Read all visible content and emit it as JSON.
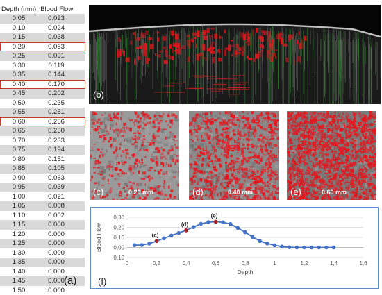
{
  "table": {
    "header_depth": "Depth (mm)",
    "header_flow": "Blood Flow",
    "label": "(a)",
    "rows": [
      {
        "depth": "0.05",
        "flow": "0.023"
      },
      {
        "depth": "0.10",
        "flow": "0.024"
      },
      {
        "depth": "0.15",
        "flow": "0.038"
      },
      {
        "depth": "0.20",
        "flow": "0.063",
        "highlight": true
      },
      {
        "depth": "0.25",
        "flow": "0.091"
      },
      {
        "depth": "0.30",
        "flow": "0.119"
      },
      {
        "depth": "0.35",
        "flow": "0.144"
      },
      {
        "depth": "0.40",
        "flow": "0.170",
        "highlight": true
      },
      {
        "depth": "0.45",
        "flow": "0.202"
      },
      {
        "depth": "0.50",
        "flow": "0.235"
      },
      {
        "depth": "0.55",
        "flow": "0.251"
      },
      {
        "depth": "0.60",
        "flow": "0.256",
        "highlight": true
      },
      {
        "depth": "0.65",
        "flow": "0.250"
      },
      {
        "depth": "0.70",
        "flow": "0.233"
      },
      {
        "depth": "0.75",
        "flow": "0.194"
      },
      {
        "depth": "0.80",
        "flow": "0.151"
      },
      {
        "depth": "0.85",
        "flow": "0.105"
      },
      {
        "depth": "0.90",
        "flow": "0.063"
      },
      {
        "depth": "0.95",
        "flow": "0.039"
      },
      {
        "depth": "1.00",
        "flow": "0.021"
      },
      {
        "depth": "1.05",
        "flow": "0.008"
      },
      {
        "depth": "1.10",
        "flow": "0.002"
      },
      {
        "depth": "1.15",
        "flow": "0.000"
      },
      {
        "depth": "1.20",
        "flow": "0.000"
      },
      {
        "depth": "1.25",
        "flow": "0.000"
      },
      {
        "depth": "1.30",
        "flow": "0.000"
      },
      {
        "depth": "1.35",
        "flow": "0.000"
      },
      {
        "depth": "1.40",
        "flow": "0.000"
      },
      {
        "depth": "1.45",
        "flow": "0.000"
      },
      {
        "depth": "1.50",
        "flow": "0.000"
      }
    ]
  },
  "panels": {
    "b": {
      "label": "(b)"
    },
    "c": {
      "label": "(c)",
      "caption": "0.20 mm"
    },
    "d": {
      "label": "(d)",
      "caption": "0.40 mm"
    },
    "e": {
      "label": "(e)",
      "caption": "0.60 mm"
    },
    "f": {
      "label": "(f)"
    }
  },
  "colors": {
    "line": "#4472c4",
    "marker": "#4472c4",
    "highlight_marker": "#a0202a",
    "table_highlight": "#c0392b",
    "frame": "#5b8dc9",
    "flow_red": "#e8141c"
  },
  "chart_data": {
    "type": "line",
    "xlabel": "Depth",
    "ylabel": "Blood Flow",
    "xlim": [
      0,
      1.6
    ],
    "ylim": [
      -0.1,
      0.3
    ],
    "x_ticks": [
      "0",
      "0,2",
      "0,4",
      "0,6",
      "0,8",
      "1",
      "1,2",
      "1,4",
      "1,6"
    ],
    "y_ticks": [
      "-0,10",
      "0,00",
      "0,10",
      "0,20",
      "0,30"
    ],
    "x_tick_values": [
      0,
      0.2,
      0.4,
      0.6,
      0.8,
      1.0,
      1.2,
      1.4,
      1.6
    ],
    "y_tick_values": [
      -0.1,
      0.0,
      0.1,
      0.2,
      0.3
    ],
    "grid": "horizontal",
    "series": [
      {
        "x": [
          0.05,
          0.1,
          0.15,
          0.2,
          0.25,
          0.3,
          0.35,
          0.4,
          0.45,
          0.5,
          0.55,
          0.6,
          0.65,
          0.7,
          0.75,
          0.8,
          0.85,
          0.9,
          0.95,
          1.0,
          1.05,
          1.1,
          1.15,
          1.2,
          1.25,
          1.3,
          1.35,
          1.4
        ],
        "values": [
          0.023,
          0.024,
          0.038,
          0.063,
          0.091,
          0.119,
          0.144,
          0.17,
          0.202,
          0.235,
          0.251,
          0.256,
          0.25,
          0.233,
          0.194,
          0.151,
          0.105,
          0.063,
          0.039,
          0.021,
          0.008,
          0.002,
          0.0,
          0.0,
          0.0,
          0.0,
          0.0,
          0.0
        ]
      }
    ],
    "annotations": [
      {
        "text": "(c)",
        "x": 0.2,
        "y": 0.063
      },
      {
        "text": "(d)",
        "x": 0.4,
        "y": 0.17
      },
      {
        "text": "(e)",
        "x": 0.6,
        "y": 0.256
      }
    ]
  }
}
